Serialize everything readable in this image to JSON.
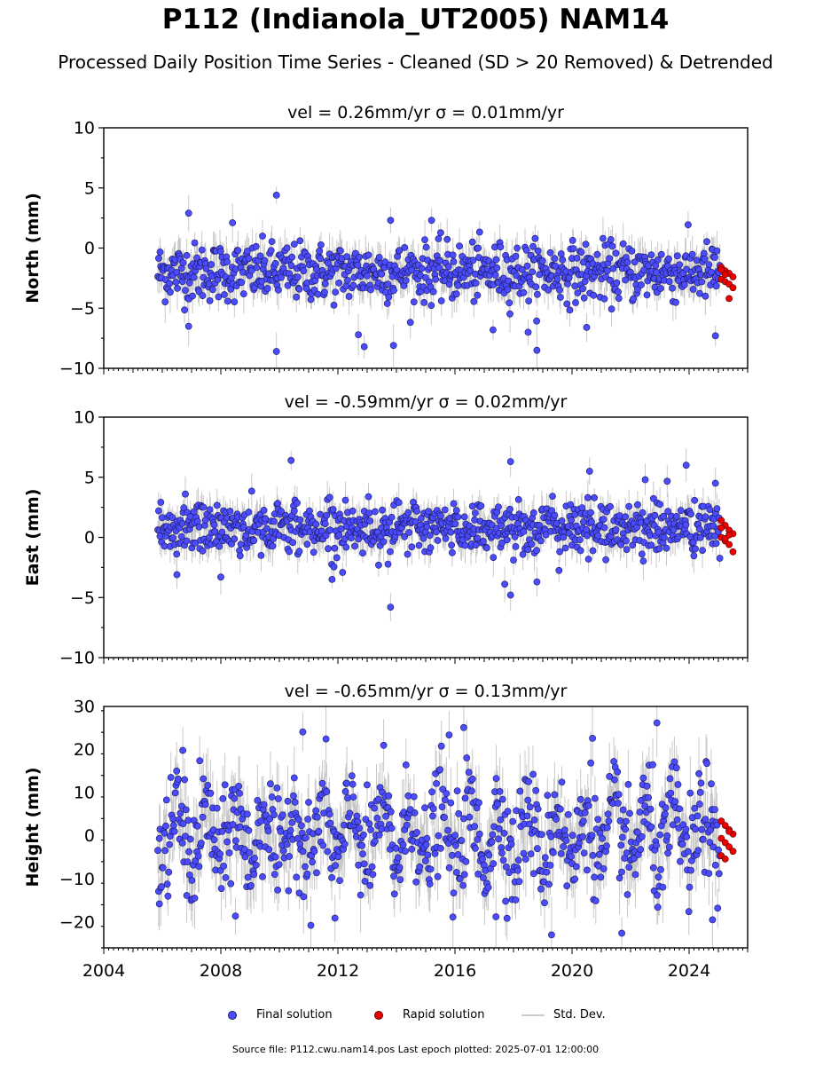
{
  "figure": {
    "title": "P112 (Indianola_UT2005) NAM14",
    "subtitle": "Processed Daily Position Time Series - Cleaned (SD > 20 Removed) & Detrended",
    "footer": "Source file: P112.cwu.nam14.pos  Last epoch plotted: 2025-07-01 12:00:00"
  },
  "legend": {
    "final_label": "Final solution",
    "rapid_label": "Rapid solution",
    "std_label": "Std. Dev."
  },
  "colors": {
    "final": "#4b4bff",
    "rapid": "#ee0000",
    "errorbar": "#9a9a9a",
    "edge": "#1a1a55"
  },
  "chart_data": [
    {
      "type": "scatter",
      "title": "vel = 0.26mm/yr   σ = 0.01mm/yr",
      "ylabel": "North (mm)",
      "xlim": [
        2004,
        2026
      ],
      "ylim": [
        -10,
        10
      ],
      "yticks": [
        "10",
        "5",
        "0",
        "−5",
        "−10"
      ],
      "x_tick_labels": [],
      "series": [
        {
          "name": "Final solution",
          "x_range": [
            2005.85,
            2025.05
          ],
          "mean": -2.0,
          "scatter": 1.2,
          "outliers": [
            [
              2009.9,
              4.4
            ],
            [
              2006.9,
              2.9
            ],
            [
              2008.4,
              2.1
            ],
            [
              2013.8,
              2.3
            ],
            [
              2015.2,
              2.3
            ],
            [
              2009.9,
              -8.6
            ],
            [
              2012.9,
              -8.2
            ],
            [
              2013.9,
              -8.1
            ],
            [
              2018.8,
              -8.5
            ],
            [
              2018.5,
              -7.0
            ],
            [
              2024.9,
              -7.3
            ],
            [
              2017.3,
              -6.8
            ],
            [
              2020.5,
              -6.6
            ],
            [
              2006.9,
              -6.5
            ],
            [
              2012.7,
              -7.2
            ]
          ]
        },
        {
          "name": "Rapid solution",
          "x_range": [
            2025.1,
            2025.5
          ],
          "values": [
            -1.6,
            -1.9,
            -2.1,
            -2.4,
            -2.6,
            -2.8,
            -3.0,
            -3.3,
            -1.8,
            -2.2,
            -4.2
          ]
        }
      ]
    },
    {
      "type": "scatter",
      "title": "vel = -0.59mm/yr   σ = 0.02mm/yr",
      "ylabel": "East (mm)",
      "xlim": [
        2004,
        2026
      ],
      "ylim": [
        -10,
        10
      ],
      "yticks": [
        "10",
        "5",
        "0",
        "−5",
        "−10"
      ],
      "x_tick_labels": [],
      "series": [
        {
          "name": "Final solution",
          "x_range": [
            2005.85,
            2025.05
          ],
          "mean": 0.8,
          "scatter": 1.1,
          "outliers": [
            [
              2010.4,
              6.4
            ],
            [
              2017.9,
              6.3
            ],
            [
              2023.9,
              6.0
            ],
            [
              2020.6,
              5.5
            ],
            [
              2022.5,
              4.8
            ],
            [
              2013.8,
              -5.8
            ],
            [
              2017.9,
              -4.8
            ],
            [
              2018.8,
              -3.7
            ],
            [
              2017.7,
              -3.9
            ],
            [
              2011.8,
              -3.5
            ],
            [
              2008.0,
              -3.3
            ],
            [
              2006.5,
              -3.1
            ],
            [
              2024.9,
              4.5
            ]
          ]
        },
        {
          "name": "Rapid solution",
          "x_range": [
            2025.1,
            2025.5
          ],
          "values": [
            1.4,
            1.0,
            0.6,
            0.3,
            0.0,
            -0.3,
            -0.6,
            -1.2,
            0.8,
            -0.1,
            0.2
          ]
        }
      ]
    },
    {
      "type": "scatter",
      "title": "vel = -0.65mm/yr   σ = 0.13mm/yr",
      "ylabel": "Height (mm)",
      "xlim": [
        2004,
        2026
      ],
      "ylim": [
        -26,
        30
      ],
      "yticks": [
        "30",
        "20",
        "10",
        "0",
        "−10",
        "−20"
      ],
      "x_tick_labels": [
        "2004",
        "2008",
        "2012",
        "2016",
        "2020",
        "2024"
      ],
      "series": [
        {
          "name": "Final solution",
          "x_range": [
            2005.85,
            2025.05
          ],
          "mean": 0.0,
          "scatter": 6.0,
          "seasonal_amplitude": 6.0,
          "outliers": [
            [
              2010.8,
              24.1
            ],
            [
              2016.3,
              25.1
            ],
            [
              2022.9,
              26.2
            ],
            [
              2015.8,
              23.4
            ],
            [
              2006.7,
              19.8
            ],
            [
              2020.7,
              22.6
            ],
            [
              2019.3,
              -23.0
            ],
            [
              2021.7,
              -22.6
            ],
            [
              2024.8,
              -19.5
            ],
            [
              2005.9,
              -15.8
            ],
            [
              2011.9,
              -19.1
            ],
            [
              2008.5,
              -18.6
            ],
            [
              2017.4,
              -18.8
            ]
          ]
        },
        {
          "name": "Rapid solution",
          "x_range": [
            2025.1,
            2025.5
          ],
          "values": [
            3.4,
            2.4,
            1.4,
            0.4,
            -0.6,
            -1.6,
            -2.6,
            -3.6,
            -4.6,
            -5.4,
            1.0
          ]
        }
      ]
    }
  ]
}
